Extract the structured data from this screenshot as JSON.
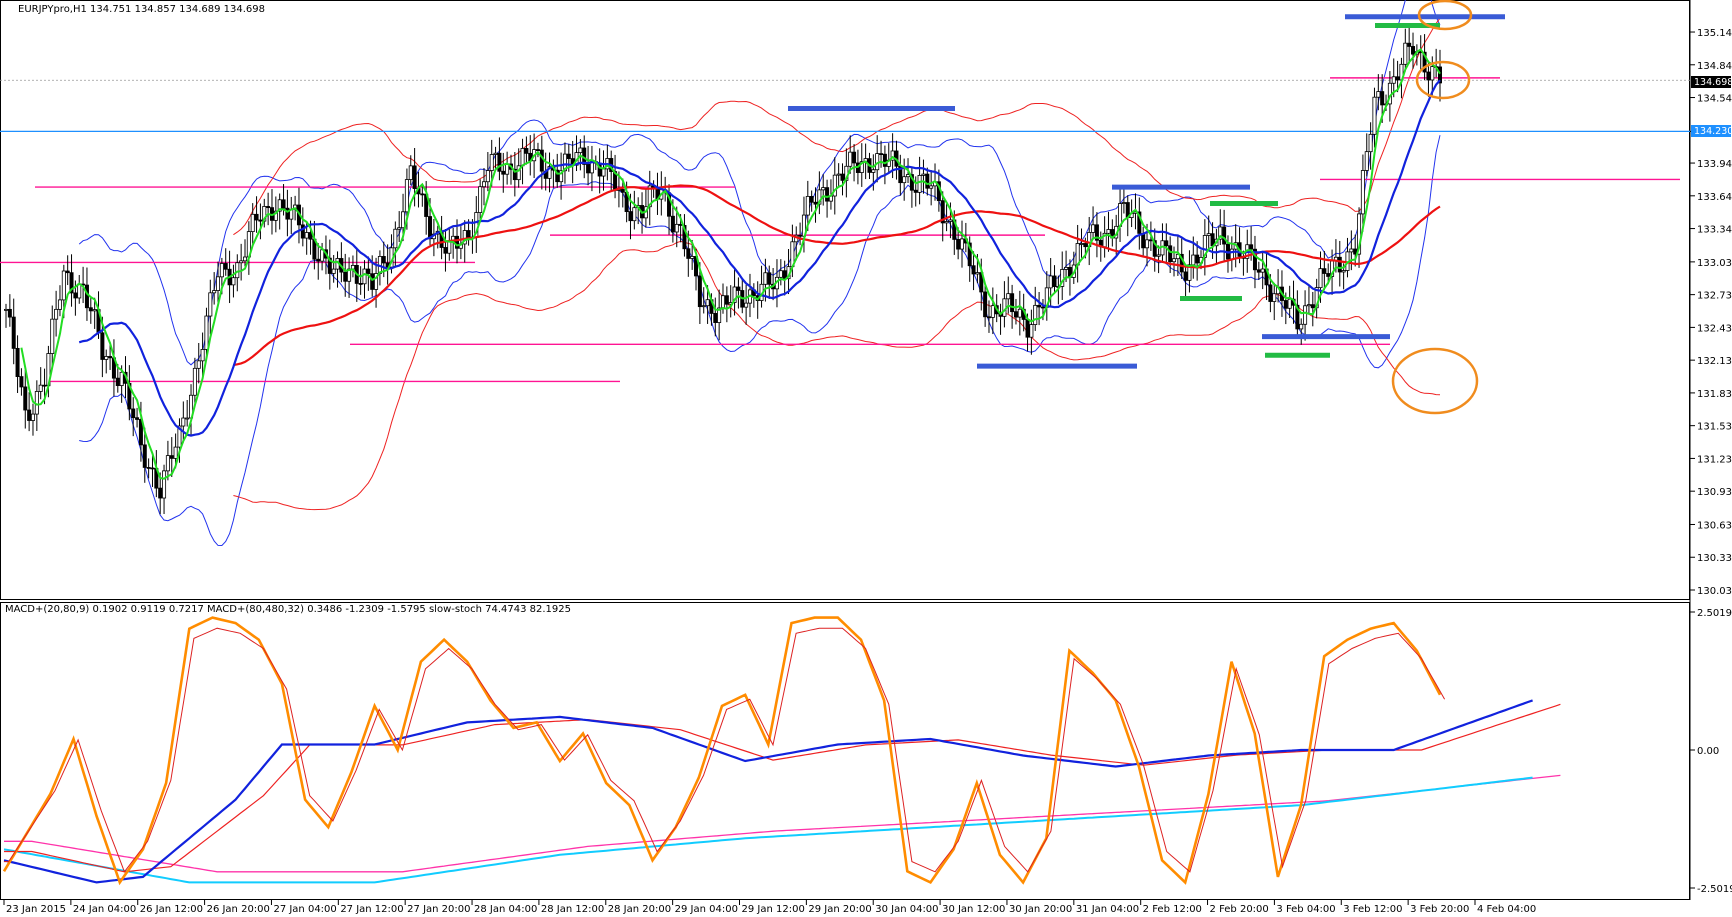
{
  "header": {
    "price_panel": "EURJPYpro,H1  134.751 134.857 134.689 134.698",
    "indicator_panel": "MACD+(20,80,9) 0.1902 0.9119 0.7217  MACD+(80,480,32) 0.3486 -1.2309 -1.5795  slow-stoch 74.4743 82.1925"
  },
  "chart_data": [
    {
      "type": "candlestick",
      "symbol": "EURJPYpro",
      "timeframe": "H1",
      "ylim": [
        130.03,
        135.36
      ],
      "y_ticks": [
        "135.140",
        "134.840",
        "134.540",
        "134.230",
        "133.940",
        "133.640",
        "133.340",
        "133.035",
        "132.735",
        "132.435",
        "132.135",
        "131.835",
        "131.535",
        "131.235",
        "130.935",
        "130.630",
        "130.330",
        "130.030"
      ],
      "last_price": "134.698",
      "horizontal_line_label": "134.230",
      "x_ticks": [
        "23 Jan 2015",
        "24 Jan 04:00",
        "26 Jan 12:00",
        "26 Jan 20:00",
        "27 Jan 04:00",
        "27 Jan 12:00",
        "27 Jan 20:00",
        "28 Jan 04:00",
        "28 Jan 12:00",
        "28 Jan 20:00",
        "29 Jan 04:00",
        "29 Jan 12:00",
        "29 Jan 20:00",
        "30 Jan 04:00",
        "30 Jan 12:00",
        "30 Jan 20:00",
        "31 Jan 04:00",
        "2 Feb 12:00",
        "2 Feb 20:00",
        "3 Feb 04:00",
        "3 Feb 12:00",
        "3 Feb 20:00",
        "4 Feb 04:00"
      ],
      "close_path": [
        [
          0,
          132.6
        ],
        [
          5,
          131.6
        ],
        [
          10,
          132.0
        ],
        [
          15,
          132.9
        ],
        [
          20,
          132.8
        ],
        [
          25,
          132.2
        ],
        [
          30,
          132.0
        ],
        [
          35,
          131.3
        ],
        [
          40,
          131.0
        ],
        [
          45,
          131.4
        ],
        [
          50,
          132.2
        ],
        [
          55,
          132.9
        ],
        [
          60,
          133.0
        ],
        [
          65,
          133.4
        ],
        [
          70,
          133.6
        ],
        [
          75,
          133.4
        ],
        [
          80,
          133.2
        ],
        [
          85,
          132.9
        ],
        [
          90,
          133.0
        ],
        [
          95,
          132.8
        ],
        [
          100,
          133.2
        ],
        [
          105,
          133.8
        ],
        [
          110,
          133.4
        ],
        [
          115,
          133.1
        ],
        [
          120,
          133.3
        ],
        [
          125,
          133.9
        ],
        [
          130,
          133.9
        ],
        [
          135,
          134.0
        ],
        [
          140,
          133.9
        ],
        [
          145,
          133.9
        ],
        [
          150,
          134.0
        ],
        [
          155,
          133.9
        ],
        [
          160,
          133.6
        ],
        [
          165,
          133.5
        ],
        [
          170,
          133.7
        ],
        [
          175,
          133.3
        ],
        [
          180,
          132.7
        ],
        [
          185,
          132.6
        ],
        [
          190,
          132.7
        ],
        [
          195,
          132.8
        ],
        [
          200,
          132.8
        ],
        [
          205,
          133.3
        ],
        [
          210,
          133.6
        ],
        [
          215,
          133.8
        ],
        [
          220,
          133.9
        ],
        [
          225,
          134.0
        ],
        [
          230,
          133.9
        ],
        [
          235,
          133.8
        ],
        [
          240,
          133.7
        ],
        [
          245,
          133.4
        ],
        [
          250,
          133.0
        ],
        [
          255,
          132.6
        ],
        [
          260,
          132.6
        ],
        [
          265,
          132.5
        ],
        [
          270,
          132.7
        ],
        [
          275,
          133.0
        ],
        [
          280,
          133.2
        ],
        [
          285,
          133.3
        ],
        [
          290,
          133.5
        ],
        [
          295,
          133.3
        ],
        [
          300,
          133.1
        ],
        [
          305,
          133.0
        ],
        [
          310,
          133.1
        ],
        [
          315,
          133.3
        ],
        [
          320,
          133.1
        ],
        [
          325,
          133.0
        ],
        [
          330,
          132.7
        ],
        [
          335,
          132.5
        ],
        [
          340,
          132.8
        ],
        [
          345,
          133.0
        ],
        [
          350,
          133.2
        ],
        [
          355,
          134.5
        ],
        [
          360,
          134.7
        ],
        [
          365,
          135.0
        ],
        [
          370,
          134.8
        ],
        [
          372,
          134.7
        ]
      ]
    },
    {
      "type": "line",
      "name": "MACD+ / slow-stoch",
      "ylim": [
        -2.5019,
        2.5019
      ],
      "y_ticks": [
        "2.5019",
        "0.00",
        "-2.5019"
      ],
      "stoch_path": [
        [
          0,
          -2.2
        ],
        [
          10,
          -0.8
        ],
        [
          15,
          0.2
        ],
        [
          20,
          -1.2
        ],
        [
          25,
          -2.4
        ],
        [
          30,
          -1.8
        ],
        [
          35,
          -0.6
        ],
        [
          40,
          2.2
        ],
        [
          45,
          2.4
        ],
        [
          50,
          2.3
        ],
        [
          55,
          2.0
        ],
        [
          60,
          1.2
        ],
        [
          65,
          -0.9
        ],
        [
          70,
          -1.4
        ],
        [
          75,
          -0.4
        ],
        [
          80,
          0.8
        ],
        [
          85,
          0.0
        ],
        [
          90,
          1.6
        ],
        [
          95,
          2.0
        ],
        [
          100,
          1.6
        ],
        [
          105,
          0.9
        ],
        [
          110,
          0.4
        ],
        [
          115,
          0.5
        ],
        [
          120,
          -0.2
        ],
        [
          125,
          0.3
        ],
        [
          130,
          -0.6
        ],
        [
          135,
          -1.0
        ],
        [
          140,
          -2.0
        ],
        [
          145,
          -1.4
        ],
        [
          150,
          -0.5
        ],
        [
          155,
          0.8
        ],
        [
          160,
          1.0
        ],
        [
          165,
          0.1
        ],
        [
          170,
          2.3
        ],
        [
          175,
          2.4
        ],
        [
          180,
          2.4
        ],
        [
          185,
          2.0
        ],
        [
          190,
          0.9
        ],
        [
          195,
          -2.2
        ],
        [
          200,
          -2.4
        ],
        [
          205,
          -1.8
        ],
        [
          210,
          -0.6
        ],
        [
          215,
          -1.9
        ],
        [
          220,
          -2.4
        ],
        [
          225,
          -1.6
        ],
        [
          230,
          1.8
        ],
        [
          235,
          1.4
        ],
        [
          240,
          0.9
        ],
        [
          245,
          -0.3
        ],
        [
          250,
          -2.0
        ],
        [
          255,
          -2.4
        ],
        [
          260,
          -0.8
        ],
        [
          265,
          1.6
        ],
        [
          270,
          0.3
        ],
        [
          275,
          -2.3
        ],
        [
          280,
          -1.0
        ],
        [
          285,
          1.7
        ],
        [
          290,
          2.0
        ],
        [
          295,
          2.2
        ],
        [
          300,
          2.3
        ],
        [
          305,
          1.8
        ],
        [
          310,
          1.0
        ]
      ],
      "macd_fast_path": [
        [
          0,
          -2.0
        ],
        [
          20,
          -2.4
        ],
        [
          30,
          -2.3
        ],
        [
          50,
          -0.9
        ],
        [
          60,
          0.1
        ],
        [
          80,
          0.1
        ],
        [
          100,
          0.5
        ],
        [
          120,
          0.6
        ],
        [
          140,
          0.4
        ],
        [
          160,
          -0.2
        ],
        [
          180,
          0.1
        ],
        [
          200,
          0.2
        ],
        [
          220,
          -0.1
        ],
        [
          240,
          -0.3
        ],
        [
          260,
          -0.1
        ],
        [
          280,
          0.0
        ],
        [
          300,
          0.0
        ],
        [
          320,
          0.6
        ],
        [
          330,
          0.9
        ]
      ],
      "macd_slow_path": [
        [
          0,
          -1.8
        ],
        [
          40,
          -2.4
        ],
        [
          80,
          -2.4
        ],
        [
          120,
          -1.9
        ],
        [
          160,
          -1.6
        ],
        [
          200,
          -1.4
        ],
        [
          240,
          -1.2
        ],
        [
          280,
          -1.0
        ],
        [
          320,
          -0.6
        ],
        [
          330,
          -0.5
        ]
      ]
    }
  ]
}
